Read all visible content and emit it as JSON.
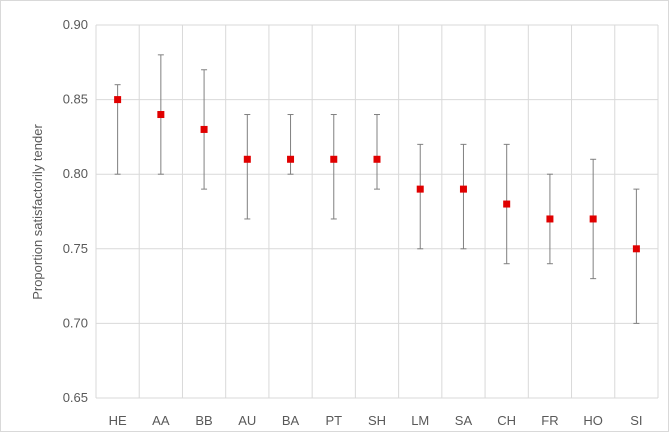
{
  "chart_data": {
    "type": "scatter",
    "ylabel": "Proportion satisfactorily tender",
    "xlabel": "",
    "ylim": [
      0.65,
      0.9
    ],
    "yticks": [
      "0.65",
      "0.70",
      "0.75",
      "0.80",
      "0.85",
      "0.90"
    ],
    "grid": "vertical and horizontal",
    "categories": [
      "HE",
      "AA",
      "BB",
      "AU",
      "BA",
      "PT",
      "SH",
      "LM",
      "SA",
      "CH",
      "FR",
      "HO",
      "SI"
    ],
    "values": [
      0.85,
      0.84,
      0.83,
      0.81,
      0.81,
      0.81,
      0.81,
      0.79,
      0.79,
      0.78,
      0.77,
      0.77,
      0.75
    ],
    "error_low": [
      0.8,
      0.8,
      0.79,
      0.77,
      0.8,
      0.77,
      0.79,
      0.75,
      0.75,
      0.74,
      0.74,
      0.73,
      0.7
    ],
    "error_high": [
      0.86,
      0.88,
      0.87,
      0.84,
      0.84,
      0.84,
      0.84,
      0.82,
      0.82,
      0.82,
      0.8,
      0.81,
      0.79
    ],
    "marker_color": "#e00000",
    "errorbar_color": "#808080",
    "grid_color": "#d9d9d9"
  }
}
